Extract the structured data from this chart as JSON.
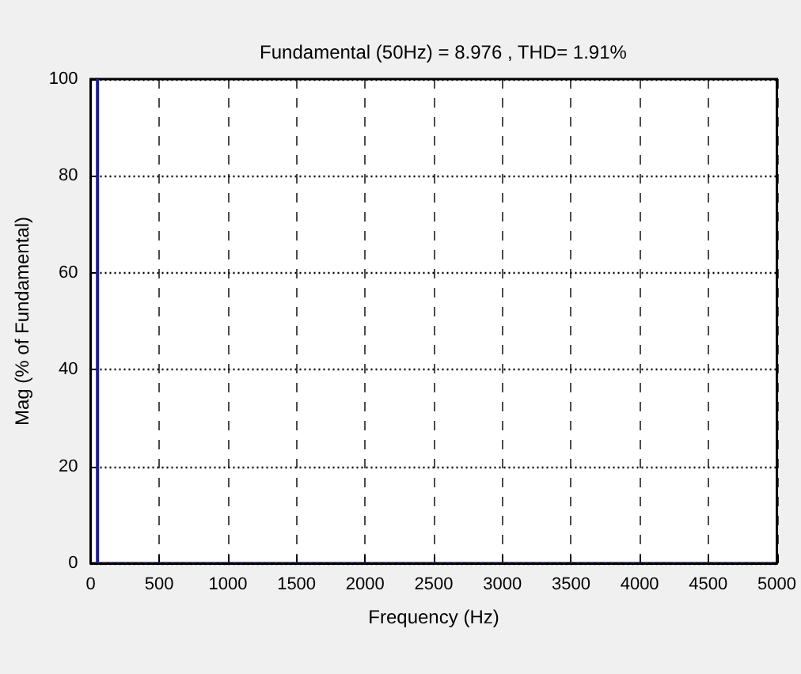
{
  "chart_data": {
    "type": "bar",
    "title": "Fundamental (50Hz) = 8.976 , THD= 1.91%",
    "xlabel": "Frequency (Hz)",
    "ylabel": "Mag (% of Fundamental)",
    "x": [
      50,
      100,
      150,
      200,
      250,
      300,
      350,
      400,
      450,
      500,
      550,
      600,
      650,
      700,
      750,
      800,
      850,
      900,
      950,
      1000,
      1050,
      1100,
      1150,
      1200,
      1250,
      1300,
      1350,
      1400,
      1450,
      1500,
      1550,
      1600,
      1650,
      1700,
      1750,
      1800,
      1850,
      1900,
      1950,
      2000,
      2050,
      2100,
      2150,
      2200,
      2250,
      2300,
      2350,
      2400,
      2450,
      2500,
      2550,
      2600,
      2650,
      2700,
      2750,
      2800,
      2850,
      2900,
      2950,
      3000,
      3050,
      3100,
      3150,
      3200,
      3250,
      3300,
      3350,
      3400,
      3450,
      3500,
      3550,
      3600,
      3650,
      3700,
      3750,
      3800,
      3850,
      3900,
      3950,
      4000,
      4050,
      4100,
      4150,
      4200,
      4250,
      4300,
      4350,
      4400,
      4450,
      4500,
      4550,
      4600,
      4650,
      4700,
      4750,
      4800,
      4850,
      4900,
      4950
    ],
    "values": [
      100,
      0.2,
      0.2,
      0.2,
      0.2,
      0.2,
      0.2,
      0.2,
      0.2,
      0.2,
      0.2,
      0.2,
      0.2,
      0.2,
      0.2,
      0.2,
      0.2,
      0.2,
      0.2,
      0.2,
      0.2,
      0.2,
      0.2,
      0.2,
      0.2,
      0.2,
      0.2,
      0.2,
      0.2,
      0.2,
      0.2,
      0.2,
      0.2,
      0.2,
      0.2,
      0.2,
      0.2,
      0.2,
      0.2,
      0.2,
      0.2,
      0.2,
      0.2,
      0.2,
      0.2,
      0.2,
      0.2,
      0.2,
      0.2,
      0.2,
      0.2,
      0.2,
      0.2,
      0.2,
      0.2,
      0.2,
      0.2,
      0.2,
      0.2,
      0.2,
      0.2,
      0.2,
      0.2,
      0.2,
      0.2,
      0.2,
      0.2,
      0.2,
      0.2,
      0.2,
      0.2,
      0.2,
      0.2,
      0.2,
      0.2,
      0.2,
      0.2,
      0.2,
      0.2,
      0.2,
      0.2,
      0.2,
      0.2,
      0.2,
      0.2,
      0.2,
      0.2,
      0.2,
      0.2,
      0.2,
      0.2,
      0.2,
      0.2,
      0.2,
      0.2,
      0.2,
      0.2,
      0.2,
      0.2
    ],
    "color": "#1f1f8f",
    "xlim": [
      0,
      5000
    ],
    "xticks": [
      0,
      500,
      1000,
      1500,
      2000,
      2500,
      3000,
      3500,
      4000,
      4500,
      5000
    ],
    "ylim": [
      0,
      100
    ],
    "yticks": [
      0,
      20,
      40,
      60,
      80,
      100
    ],
    "grid": true
  }
}
